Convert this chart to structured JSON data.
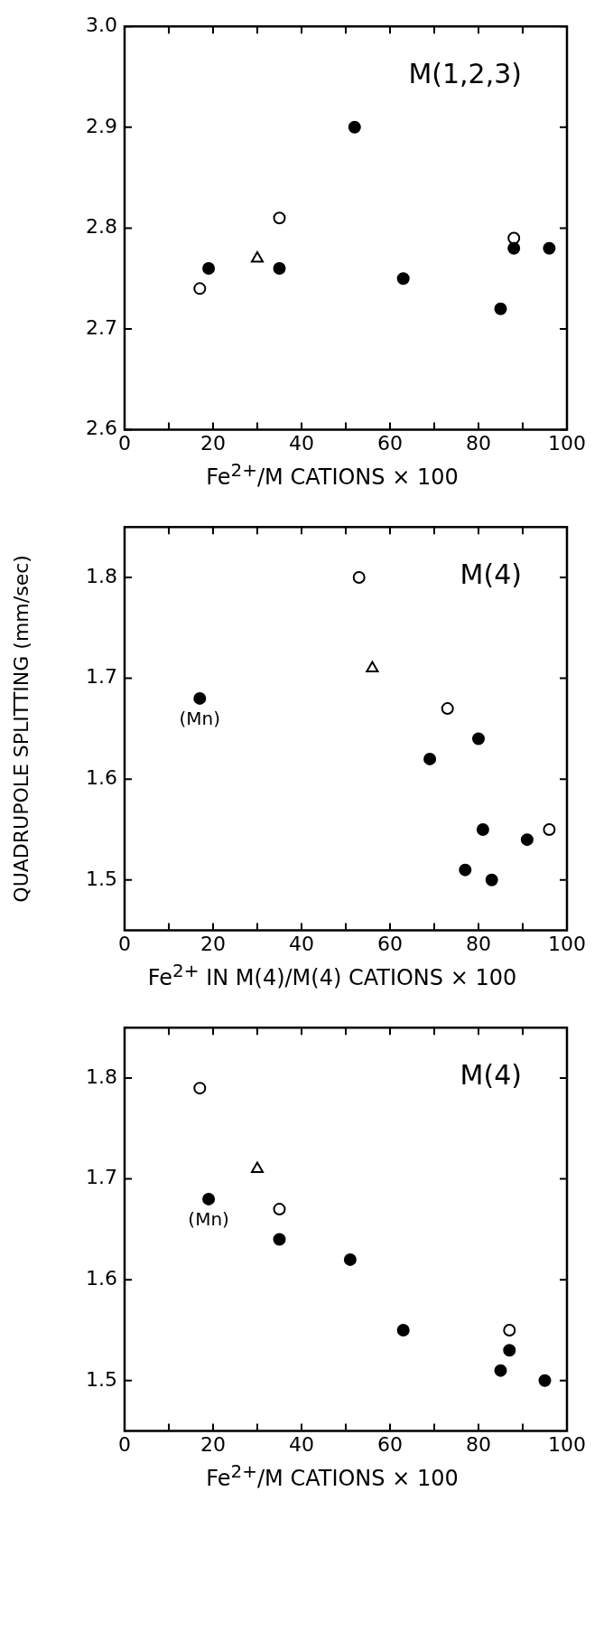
{
  "chart_data": [
    {
      "type": "scatter",
      "xlabel": "Fe$^{2+}$/M CATIONS × 100",
      "xlim": [
        0,
        100
      ],
      "xticks": [
        0,
        {
          "value": 10,
          "label": null
        },
        20,
        {
          "value": 30,
          "label": null
        },
        40,
        {
          "value": 50,
          "label": null
        },
        60,
        {
          "value": 70,
          "label": null
        },
        80,
        {
          "value": 90,
          "label": null
        },
        100
      ],
      "ylim": [
        2.6,
        3.0
      ],
      "yticks": [
        2.6,
        2.7,
        2.8,
        2.9,
        {
          "value": 3.0,
          "label": "3.0"
        }
      ],
      "annotations": [
        "M(1,2,3)"
      ],
      "series": [
        {
          "color": "#000000",
          "marker": "circle",
          "x": [
            19,
            35,
            52,
            63,
            85,
            88,
            96
          ],
          "values": [
            2.76,
            2.76,
            2.9,
            2.75,
            2.72,
            2.78,
            2.78
          ]
        },
        {
          "color": "#ffffff",
          "marker": "circle",
          "x": [
            17,
            35,
            88
          ],
          "values": [
            2.74,
            2.81,
            2.79
          ]
        },
        {
          "color": "#ffffff",
          "marker": "triangle",
          "x": [
            30
          ],
          "values": [
            2.77
          ]
        }
      ]
    },
    {
      "type": "scatter",
      "xlabel": "Fe$^{2+}$ IN M(4)/M(4) CATIONS × 100",
      "ylabel": "QUADRUPOLE SPLITTING (mm/sec)",
      "xlim": [
        0,
        100
      ],
      "xticks": [
        0,
        {
          "value": 10,
          "label": null
        },
        20,
        {
          "value": 30,
          "label": null
        },
        40,
        {
          "value": 50,
          "label": null
        },
        60,
        {
          "value": 70,
          "label": null
        },
        80,
        {
          "value": 90,
          "label": null
        },
        100
      ],
      "ylim": [
        1.45,
        1.85
      ],
      "yticks": [
        1.5,
        1.6,
        1.7,
        1.8
      ],
      "annotations": [
        "M(4)",
        {
          "text": "(Mn)",
          "x": 17,
          "y": 1.68
        }
      ],
      "series": [
        {
          "color": "#000000",
          "marker": "circle",
          "x": [
            17,
            69,
            80,
            81,
            77,
            83,
            91
          ],
          "values": [
            1.68,
            1.62,
            1.64,
            1.55,
            1.51,
            1.5,
            1.54
          ]
        },
        {
          "color": "#ffffff",
          "marker": "circle",
          "x": [
            53,
            73,
            96
          ],
          "values": [
            1.8,
            1.67,
            1.55
          ]
        },
        {
          "color": "#ffffff",
          "marker": "triangle",
          "x": [
            56
          ],
          "values": [
            1.71
          ]
        }
      ]
    },
    {
      "type": "scatter",
      "xlabel": "Fe$^{2+}$/M CATIONS × 100",
      "xlim": [
        0,
        100
      ],
      "xticks": [
        0,
        {
          "value": 10,
          "label": null
        },
        20,
        {
          "value": 30,
          "label": null
        },
        40,
        {
          "value": 50,
          "label": null
        },
        60,
        {
          "value": 70,
          "label": null
        },
        80,
        {
          "value": 90,
          "label": null
        },
        100
      ],
      "ylim": [
        1.45,
        1.85
      ],
      "yticks": [
        1.5,
        1.6,
        1.7,
        1.8
      ],
      "annotations": [
        "M(4)",
        {
          "text": "(Mn)",
          "x": 19,
          "y": 1.68
        }
      ],
      "series": [
        {
          "color": "#000000",
          "marker": "circle",
          "x": [
            19,
            35,
            51,
            63,
            85,
            87,
            95
          ],
          "values": [
            1.68,
            1.64,
            1.62,
            1.55,
            1.51,
            1.53,
            1.5
          ]
        },
        {
          "color": "#ffffff",
          "marker": "circle",
          "x": [
            17,
            35,
            87
          ],
          "values": [
            1.79,
            1.67,
            1.55
          ]
        },
        {
          "color": "#ffffff",
          "marker": "triangle",
          "x": [
            30
          ],
          "values": [
            1.71
          ]
        }
      ]
    }
  ]
}
